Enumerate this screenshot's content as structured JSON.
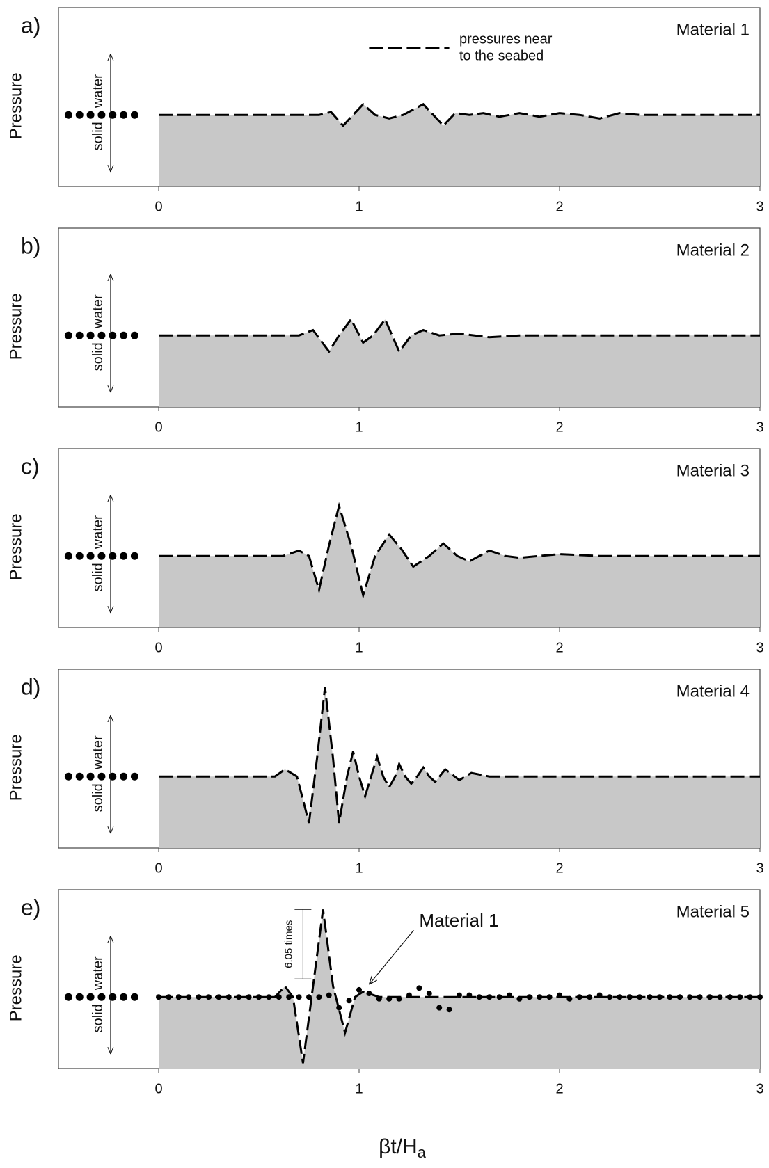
{
  "chart_data": [
    {
      "type": "line",
      "panel_label": "a)",
      "title": "Material 1",
      "ylabel": "Pressure",
      "water_label": "water",
      "solid_label": "solid",
      "xlim": [
        -0.5,
        3
      ],
      "ylim": [
        -2,
        3
      ],
      "xticks": [
        0,
        1,
        2,
        3
      ],
      "fill_color": "#c8c8c8",
      "legend": {
        "lines": [
          "pressures near",
          "to the seabed"
        ]
      },
      "series": [
        {
          "type": "line",
          "color": "#000000",
          "x": [
            0,
            0.8,
            0.86,
            0.92,
            0.97,
            1.02,
            1.08,
            1.15,
            1.22,
            1.27,
            1.32,
            1.37,
            1.42,
            1.48,
            1.55,
            1.62,
            1.7,
            1.8,
            1.9,
            2.0,
            2.1,
            2.2,
            2.3,
            2.4,
            3
          ],
          "values": [
            0,
            0,
            0.08,
            -0.3,
            0,
            0.3,
            0,
            -0.1,
            0,
            0.15,
            0.3,
            0,
            -0.3,
            0.05,
            0,
            0.05,
            -0.05,
            0.05,
            -0.05,
            0.05,
            0,
            -0.1,
            0.05,
            0,
            0
          ]
        }
      ]
    },
    {
      "type": "line",
      "panel_label": "b)",
      "title": "Material 2",
      "ylabel": "Pressure",
      "water_label": "water",
      "solid_label": "solid",
      "xlim": [
        -0.5,
        3
      ],
      "ylim": [
        -2,
        3
      ],
      "xticks": [
        0,
        1,
        2,
        3
      ],
      "fill_color": "#c8c8c8",
      "series": [
        {
          "type": "line",
          "color": "#000000",
          "x": [
            0,
            0.7,
            0.77,
            0.85,
            0.9,
            0.96,
            1.02,
            1.07,
            1.13,
            1.2,
            1.26,
            1.32,
            1.4,
            1.5,
            1.65,
            1.8,
            2.0,
            3
          ],
          "values": [
            0,
            0,
            0.15,
            -0.45,
            0,
            0.45,
            -0.2,
            0,
            0.45,
            -0.45,
            0,
            0.15,
            0,
            0.05,
            -0.05,
            0,
            0,
            0
          ]
        }
      ]
    },
    {
      "type": "line",
      "panel_label": "c)",
      "title": "Material 3",
      "ylabel": "Pressure",
      "water_label": "water",
      "solid_label": "solid",
      "xlim": [
        -0.5,
        3
      ],
      "ylim": [
        -2,
        3
      ],
      "xticks": [
        0,
        1,
        2,
        3
      ],
      "fill_color": "#c8c8c8",
      "series": [
        {
          "type": "line",
          "color": "#000000",
          "x": [
            0,
            0.62,
            0.7,
            0.75,
            0.8,
            0.85,
            0.9,
            0.96,
            1.02,
            1.08,
            1.15,
            1.21,
            1.27,
            1.35,
            1.42,
            1.49,
            1.55,
            1.65,
            1.73,
            1.8,
            2.0,
            2.2,
            3
          ],
          "values": [
            0,
            0,
            0.15,
            0,
            -0.95,
            0.3,
            1.4,
            0.3,
            -1.1,
            0,
            0.6,
            0.2,
            -0.3,
            0,
            0.35,
            0,
            -0.15,
            0.15,
            0,
            -0.05,
            0.05,
            0,
            0
          ]
        }
      ]
    },
    {
      "type": "line",
      "panel_label": "d)",
      "title": "Material 4",
      "ylabel": "Pressure",
      "water_label": "water",
      "solid_label": "solid",
      "xlim": [
        -0.5,
        3
      ],
      "ylim": [
        -2,
        3
      ],
      "xticks": [
        0,
        1,
        2,
        3
      ],
      "fill_color": "#c8c8c8",
      "series": [
        {
          "type": "line",
          "color": "#000000",
          "x": [
            0,
            0.58,
            0.63,
            0.69,
            0.75,
            0.79,
            0.83,
            0.87,
            0.9,
            0.94,
            0.97,
            1.0,
            1.03,
            1.06,
            1.09,
            1.12,
            1.15,
            1.18,
            1.2,
            1.23,
            1.26,
            1.29,
            1.32,
            1.35,
            1.38,
            1.43,
            1.5,
            1.56,
            1.65,
            3
          ],
          "values": [
            0,
            0,
            0.2,
            0,
            -1.3,
            0.5,
            2.5,
            0.5,
            -1.3,
            0,
            0.7,
            0,
            -0.55,
            0,
            0.55,
            0,
            -0.3,
            0,
            0.35,
            0,
            -0.2,
            0,
            0.25,
            0,
            -0.15,
            0.2,
            -0.1,
            0.1,
            0,
            0
          ]
        }
      ]
    },
    {
      "type": "line",
      "panel_label": "e)",
      "title": "Material 5",
      "ylabel": "Pressure",
      "water_label": "water",
      "solid_label": "solid",
      "xlim": [
        -0.5,
        3
      ],
      "ylim": [
        -2,
        3
      ],
      "xticks": [
        0,
        1,
        2,
        3
      ],
      "fill_color": "#c8c8c8",
      "annotation": "6.05 times",
      "series": [
        {
          "type": "line",
          "color": "#000000",
          "x": [
            0,
            0.58,
            0.63,
            0.67,
            0.72,
            0.77,
            0.82,
            0.87,
            0.93,
            0.98,
            1.02,
            1.1,
            1.5,
            3
          ],
          "values": [
            0,
            0,
            0.3,
            0,
            -1.85,
            0.3,
            2.45,
            0.3,
            -1.0,
            0,
            0.15,
            0,
            0,
            0
          ]
        },
        {
          "type": "scatter",
          "name": "Material 1",
          "color": "#000000",
          "x": [
            0,
            0.05,
            0.1,
            0.15,
            0.2,
            0.25,
            0.3,
            0.35,
            0.4,
            0.45,
            0.5,
            0.55,
            0.6,
            0.65,
            0.7,
            0.75,
            0.8,
            0.85,
            0.9,
            0.95,
            1,
            1.05,
            1.1,
            1.15,
            1.2,
            1.25,
            1.3,
            1.35,
            1.4,
            1.45,
            1.5,
            1.55,
            1.6,
            1.65,
            1.7,
            1.75,
            1.8,
            1.85,
            1.9,
            1.95,
            2,
            2.05,
            2.1,
            2.15,
            2.2,
            2.25,
            2.3,
            2.35,
            2.4,
            2.45,
            2.5,
            2.55,
            2.6,
            2.65,
            2.7,
            2.75,
            2.8,
            2.85,
            2.9,
            2.95,
            3
          ],
          "values": [
            0,
            0,
            0,
            0,
            0,
            0,
            0,
            0,
            0,
            0,
            0,
            0,
            0,
            0,
            0,
            0,
            0,
            0.05,
            -0.3,
            -0.1,
            0.2,
            0.1,
            -0.05,
            -0.05,
            -0.05,
            0.05,
            0.25,
            0.1,
            -0.3,
            -0.35,
            0.05,
            0.05,
            0,
            0,
            0,
            0.05,
            -0.05,
            0,
            0,
            0,
            0.05,
            -0.05,
            0,
            0,
            0.05,
            0,
            0,
            0,
            0,
            0,
            0,
            0,
            0,
            0,
            0,
            0,
            0,
            0,
            0,
            0,
            0
          ]
        }
      ]
    }
  ],
  "shared_xlabel": {
    "text": "βt/H",
    "subscript": "a"
  }
}
